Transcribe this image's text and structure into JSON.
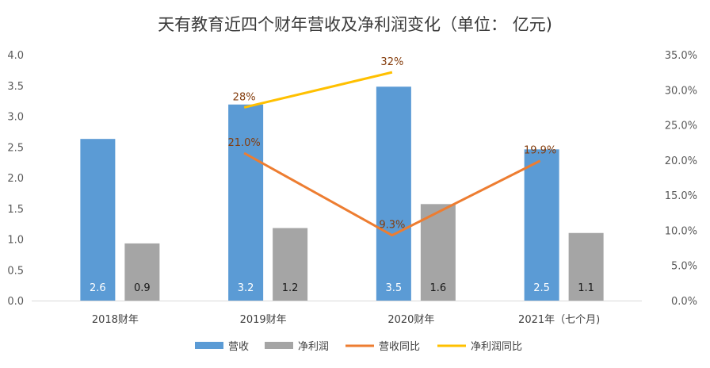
{
  "chart_data": {
    "type": "bar",
    "title": "天有教育近四个财年营收及净利润变化（单位： 亿元)",
    "categories": [
      "2018财年",
      "2019财年",
      "2020财年",
      "2021年（七个月)"
    ],
    "ylim": [
      0,
      4.0
    ],
    "yticks": [
      "0.0",
      "0.5",
      "1.0",
      "1.5",
      "2.0",
      "2.5",
      "3.0",
      "3.5",
      "4.0"
    ],
    "y2lim": [
      0,
      35
    ],
    "y2ticks": [
      "0.0%",
      "5.0%",
      "10.0%",
      "15.0%",
      "20.0%",
      "25.0%",
      "30.0%",
      "35.0%"
    ],
    "series": [
      {
        "name": "营收",
        "kind": "bar",
        "axis": "left",
        "color": "#5b9bd5",
        "values": [
          2.63,
          3.19,
          3.48,
          2.46
        ],
        "labels": [
          "2.6",
          "3.2",
          "3.5",
          "2.5"
        ],
        "label_color": "#ffffff"
      },
      {
        "name": "净利润",
        "kind": "bar",
        "axis": "left",
        "color": "#a5a5a5",
        "values": [
          0.93,
          1.18,
          1.57,
          1.1
        ],
        "labels": [
          "0.9",
          "1.2",
          "1.6",
          "1.1"
        ],
        "label_color": "#1a1a1a"
      },
      {
        "name": "营收同比",
        "kind": "line",
        "axis": "right",
        "color": "#ed7d31",
        "values": [
          null,
          21.0,
          9.3,
          19.9
        ],
        "labels": [
          null,
          "21.0%",
          "9.3%",
          "19.9%"
        ],
        "label_color": "#843c0c"
      },
      {
        "name": "净利润同比",
        "kind": "line",
        "axis": "right",
        "color": "#ffc000",
        "values": [
          null,
          27.5,
          32.5,
          null
        ],
        "labels": [
          null,
          "28%",
          "32%",
          null
        ],
        "label_color": "#843c0c"
      }
    ],
    "legend": [
      "营收",
      "净利润",
      "营收同比",
      "净利润同比"
    ],
    "legend_position": "bottom",
    "grid": false
  }
}
